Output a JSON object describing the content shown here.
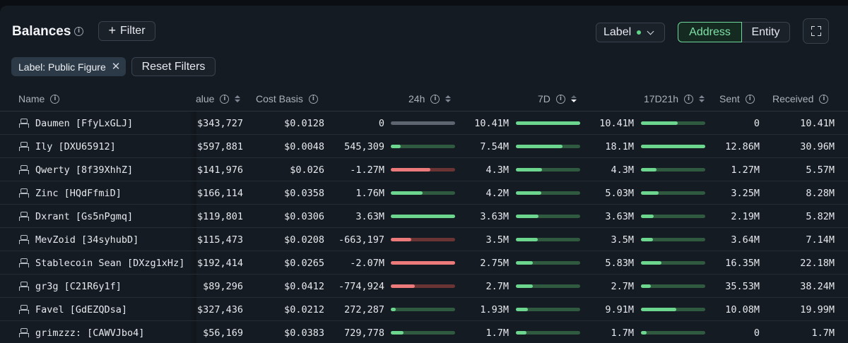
{
  "header": {
    "title": "Balances",
    "filter_label": "Filter",
    "label_select": "Label",
    "toggle": {
      "address": "Address",
      "entity": "Entity"
    }
  },
  "filters": {
    "chip_label": "Label: Public Figure",
    "reset_label": "Reset Filters"
  },
  "columns": {
    "name": "Name",
    "value": "alue",
    "cost_basis": "Cost Basis",
    "h24": "24h",
    "d7": "7D",
    "d17h21": "17D21h",
    "sent": "Sent",
    "received": "Received"
  },
  "colors": {
    "accent_green": "#6fd89a",
    "bar_green": "#6cd68f",
    "bar_green_track": "#2f5a3f",
    "bar_red": "#ec7a7a",
    "bar_red_track": "#6a3434",
    "bar_neutral": "#5d6570"
  },
  "rows": [
    {
      "name": "Daumen [FfyLxGLJ]",
      "value": "$343,727",
      "cost_basis": "$0.0128",
      "h24": "0",
      "h24_bar": 0,
      "h24_dir": "neutral",
      "d7": "10.41M",
      "d7_bar": 1.0,
      "d17h21": "10.41M",
      "d17_bar": 0.57,
      "sent": "0",
      "received": "10.41M"
    },
    {
      "name": "Ily [DXU65912]",
      "value": "$597,881",
      "cost_basis": "$0.0048",
      "h24": "545,309",
      "h24_bar": 0.15,
      "h24_dir": "pos",
      "d7": "7.54M",
      "d7_bar": 0.72,
      "d17h21": "18.1M",
      "d17_bar": 1.0,
      "sent": "12.86M",
      "received": "30.96M"
    },
    {
      "name": "Qwerty [8f39XhhZ]",
      "value": "$141,976",
      "cost_basis": "$0.026",
      "h24": "-1.27M",
      "h24_bar": 0.62,
      "h24_dir": "neg",
      "d7": "4.3M",
      "d7_bar": 0.41,
      "d17h21": "4.3M",
      "d17_bar": 0.24,
      "sent": "1.27M",
      "received": "5.57M"
    },
    {
      "name": "Zinc [HQdFfmiD]",
      "value": "$166,114",
      "cost_basis": "$0.0358",
      "h24": "1.76M",
      "h24_bar": 0.49,
      "h24_dir": "pos",
      "d7": "4.2M",
      "d7_bar": 0.4,
      "d17h21": "5.03M",
      "d17_bar": 0.28,
      "sent": "3.25M",
      "received": "8.28M"
    },
    {
      "name": "Dxrant [Gs5nPgmq]",
      "value": "$119,801",
      "cost_basis": "$0.0306",
      "h24": "3.63M",
      "h24_bar": 1.0,
      "h24_dir": "pos",
      "d7": "3.63M",
      "d7_bar": 0.35,
      "d17h21": "3.63M",
      "d17_bar": 0.2,
      "sent": "2.19M",
      "received": "5.82M"
    },
    {
      "name": "MevZoid [34syhubD]",
      "value": "$115,473",
      "cost_basis": "$0.0208",
      "h24": "-663,197",
      "h24_bar": 0.32,
      "h24_dir": "neg",
      "d7": "3.5M",
      "d7_bar": 0.34,
      "d17h21": "3.5M",
      "d17_bar": 0.19,
      "sent": "3.64M",
      "received": "7.14M"
    },
    {
      "name": "Stablecoin Sean [DXzg1xHz]",
      "value": "$192,414",
      "cost_basis": "$0.0265",
      "h24": "-2.07M",
      "h24_bar": 1.0,
      "h24_dir": "neg",
      "d7": "2.75M",
      "d7_bar": 0.26,
      "d17h21": "5.83M",
      "d17_bar": 0.32,
      "sent": "16.35M",
      "received": "22.18M"
    },
    {
      "name": "gr3g [C21R6y1f]",
      "value": "$89,296",
      "cost_basis": "$0.0412",
      "h24": "-774,924",
      "h24_bar": 0.37,
      "h24_dir": "neg",
      "d7": "2.7M",
      "d7_bar": 0.26,
      "d17h21": "2.7M",
      "d17_bar": 0.15,
      "sent": "35.53M",
      "received": "38.24M"
    },
    {
      "name": "Favel [GdEZQDsa]",
      "value": "$327,436",
      "cost_basis": "$0.0212",
      "h24": "272,287",
      "h24_bar": 0.08,
      "h24_dir": "pos",
      "d7": "1.93M",
      "d7_bar": 0.19,
      "d17h21": "9.91M",
      "d17_bar": 0.55,
      "sent": "10.08M",
      "received": "19.99M"
    },
    {
      "name": "grimzzz: [CAWVJbo4]",
      "value": "$56,169",
      "cost_basis": "$0.0383",
      "h24": "729,778",
      "h24_bar": 0.2,
      "h24_dir": "pos",
      "d7": "1.7M",
      "d7_bar": 0.16,
      "d17h21": "1.7M",
      "d17_bar": 0.09,
      "sent": "0",
      "received": "1.7M"
    }
  ]
}
